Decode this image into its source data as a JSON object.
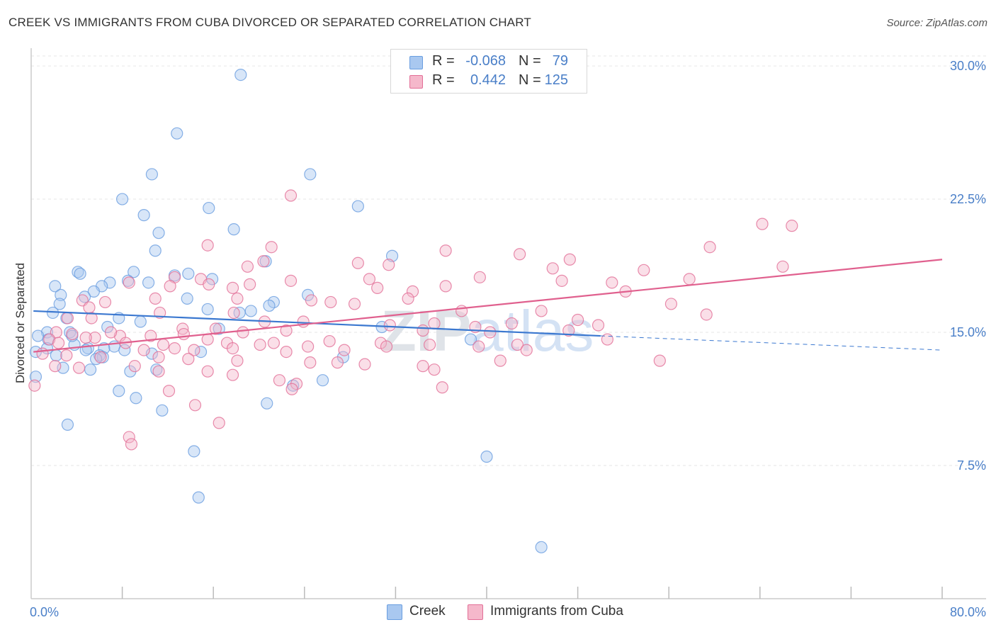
{
  "title": "CREEK VS IMMIGRANTS FROM CUBA DIVORCED OR SEPARATED CORRELATION CHART",
  "source": "Source: ZipAtlas.com",
  "watermark": "ZIPatlas",
  "legend": {
    "rows": [
      {
        "r_label": "R =",
        "r_value": "-0.068",
        "n_label": "N =",
        "n_value": "79",
        "color": "#a9c8f0"
      },
      {
        "r_label": "R =",
        "r_value": "0.442",
        "n_label": "N =",
        "n_value": "125",
        "color": "#f5b8cb"
      }
    ]
  },
  "bottom_legend": [
    {
      "label": "Creek",
      "color": "#a9c8f0"
    },
    {
      "label": "Immigrants from Cuba",
      "color": "#f5b8cb"
    }
  ],
  "chart_data": {
    "type": "scatter",
    "title": "CREEK VS IMMIGRANTS FROM CUBA DIVORCED OR SEPARATED CORRELATION CHART",
    "xlabel": "",
    "ylabel": "Divorced or Separated",
    "xlim": [
      0,
      80
    ],
    "ylim": [
      0,
      31
    ],
    "x_tick_labels": [
      "0.0%",
      "80.0%"
    ],
    "y_ticks": [
      7.5,
      15.0,
      22.5,
      30.0
    ],
    "y_tick_labels": [
      "7.5%",
      "15.0%",
      "22.5%",
      "30.0%"
    ],
    "grid": true,
    "legend_position": "top-center",
    "series": [
      {
        "name": "Creek",
        "color": "#6a9ee0",
        "fill": "#a9c8f0",
        "trend": {
          "x0": 0.2,
          "y0": 16.2,
          "x1": 50,
          "y1": 14.8,
          "dash_x1": 80,
          "dash_y1": 14.0
        },
        "points": [
          [
            18.4,
            29.5
          ],
          [
            12.8,
            26.2
          ],
          [
            10.6,
            23.9
          ],
          [
            24.5,
            23.9
          ],
          [
            8.0,
            22.5
          ],
          [
            15.6,
            22.0
          ],
          [
            28.7,
            22.1
          ],
          [
            9.9,
            21.6
          ],
          [
            11.2,
            20.6
          ],
          [
            17.8,
            20.8
          ],
          [
            10.9,
            19.6
          ],
          [
            31.7,
            19.3
          ],
          [
            20.6,
            19.0
          ],
          [
            4.1,
            18.4
          ],
          [
            4.3,
            18.3
          ],
          [
            9.0,
            18.4
          ],
          [
            12.6,
            18.2
          ],
          [
            15.9,
            18.0
          ],
          [
            6.9,
            17.8
          ],
          [
            6.2,
            17.6
          ],
          [
            8.5,
            17.9
          ],
          [
            10.3,
            17.8
          ],
          [
            2.1,
            17.6
          ],
          [
            5.5,
            17.3
          ],
          [
            2.6,
            17.1
          ],
          [
            24.3,
            17.1
          ],
          [
            4.7,
            17.0
          ],
          [
            13.7,
            16.9
          ],
          [
            21.3,
            16.7
          ],
          [
            2.5,
            16.6
          ],
          [
            20.9,
            16.5
          ],
          [
            15.5,
            16.3
          ],
          [
            1.9,
            16.1
          ],
          [
            18.3,
            16.1
          ],
          [
            19.3,
            16.2
          ],
          [
            3.1,
            15.8
          ],
          [
            7.7,
            15.8
          ],
          [
            9.6,
            15.6
          ],
          [
            6.7,
            15.3
          ],
          [
            16.5,
            15.2
          ],
          [
            30.8,
            15.3
          ],
          [
            1.4,
            15.0
          ],
          [
            3.4,
            15.0
          ],
          [
            0.6,
            14.8
          ],
          [
            1.5,
            14.6
          ],
          [
            38.6,
            14.6
          ],
          [
            3.8,
            14.3
          ],
          [
            5.0,
            14.1
          ],
          [
            7.3,
            14.2
          ],
          [
            4.8,
            14.0
          ],
          [
            6.4,
            14.1
          ],
          [
            0.4,
            13.9
          ],
          [
            1.4,
            14.1
          ],
          [
            8.2,
            14.0
          ],
          [
            6.0,
            13.7
          ],
          [
            10.6,
            13.8
          ],
          [
            14.9,
            13.9
          ],
          [
            2.2,
            13.7
          ],
          [
            27.4,
            13.6
          ],
          [
            6.3,
            13.6
          ],
          [
            5.7,
            13.5
          ],
          [
            2.8,
            13.0
          ],
          [
            5.2,
            12.9
          ],
          [
            8.7,
            12.8
          ],
          [
            11.0,
            12.9
          ],
          [
            0.4,
            12.5
          ],
          [
            25.6,
            12.3
          ],
          [
            23.0,
            12.0
          ],
          [
            7.7,
            11.7
          ],
          [
            9.2,
            11.3
          ],
          [
            11.5,
            10.6
          ],
          [
            20.7,
            11.0
          ],
          [
            3.2,
            9.8
          ],
          [
            14.3,
            8.3
          ],
          [
            40.0,
            8.0
          ],
          [
            14.7,
            5.7
          ],
          [
            44.8,
            2.9
          ],
          [
            3.6,
            14.8
          ],
          [
            13.8,
            18.3
          ]
        ]
      },
      {
        "name": "Immigrants from Cuba",
        "color": "#e26f97",
        "fill": "#f5b8cb",
        "trend": {
          "x0": 0.2,
          "y0": 13.9,
          "x1": 80,
          "y1": 19.1
        },
        "points": [
          [
            22.8,
            22.7
          ],
          [
            64.2,
            21.1
          ],
          [
            66.8,
            21.0
          ],
          [
            15.5,
            19.9
          ],
          [
            21.1,
            19.8
          ],
          [
            59.6,
            19.8
          ],
          [
            36.4,
            19.6
          ],
          [
            42.9,
            19.4
          ],
          [
            20.4,
            19.0
          ],
          [
            28.7,
            18.9
          ],
          [
            19.0,
            18.7
          ],
          [
            31.4,
            18.8
          ],
          [
            47.3,
            19.1
          ],
          [
            45.8,
            18.6
          ],
          [
            53.8,
            18.5
          ],
          [
            66.0,
            18.7
          ],
          [
            12.6,
            18.1
          ],
          [
            14.9,
            18.0
          ],
          [
            29.7,
            18.0
          ],
          [
            39.4,
            18.1
          ],
          [
            57.8,
            18.0
          ],
          [
            8.6,
            17.8
          ],
          [
            15.6,
            17.7
          ],
          [
            12.2,
            17.6
          ],
          [
            17.7,
            17.5
          ],
          [
            19.2,
            17.7
          ],
          [
            22.8,
            17.9
          ],
          [
            30.4,
            17.5
          ],
          [
            33.5,
            17.3
          ],
          [
            36.4,
            17.6
          ],
          [
            46.6,
            17.9
          ],
          [
            51.0,
            17.8
          ],
          [
            52.2,
            17.3
          ],
          [
            10.9,
            16.9
          ],
          [
            18.1,
            16.9
          ],
          [
            24.6,
            16.8
          ],
          [
            26.3,
            16.7
          ],
          [
            28.4,
            16.6
          ],
          [
            4.5,
            16.8
          ],
          [
            6.5,
            16.7
          ],
          [
            5.1,
            16.4
          ],
          [
            11.3,
            16.1
          ],
          [
            17.8,
            16.1
          ],
          [
            37.8,
            16.2
          ],
          [
            44.8,
            16.2
          ],
          [
            56.2,
            16.6
          ],
          [
            59.3,
            16.0
          ],
          [
            3.2,
            15.8
          ],
          [
            5.3,
            15.8
          ],
          [
            20.5,
            15.6
          ],
          [
            23.9,
            15.6
          ],
          [
            31.5,
            15.4
          ],
          [
            35.4,
            15.5
          ],
          [
            42.2,
            15.5
          ],
          [
            48.0,
            15.7
          ],
          [
            47.2,
            15.1
          ],
          [
            49.8,
            15.4
          ],
          [
            39.0,
            15.3
          ],
          [
            40.3,
            15.0
          ],
          [
            34.4,
            15.1
          ],
          [
            16.2,
            15.2
          ],
          [
            18.6,
            15.0
          ],
          [
            22.4,
            15.1
          ],
          [
            13.3,
            15.2
          ],
          [
            13.4,
            14.9
          ],
          [
            10.5,
            14.8
          ],
          [
            7.8,
            14.8
          ],
          [
            5.6,
            14.7
          ],
          [
            3.6,
            14.9
          ],
          [
            2.2,
            15.0
          ],
          [
            1.6,
            14.6
          ],
          [
            2.4,
            14.4
          ],
          [
            4.8,
            14.7
          ],
          [
            8.3,
            14.4
          ],
          [
            11.6,
            14.3
          ],
          [
            15.5,
            14.6
          ],
          [
            17.2,
            14.4
          ],
          [
            20.1,
            14.3
          ],
          [
            21.3,
            14.4
          ],
          [
            24.3,
            14.2
          ],
          [
            30.7,
            14.4
          ],
          [
            35.0,
            14.3
          ],
          [
            39.3,
            14.2
          ],
          [
            42.7,
            14.3
          ],
          [
            50.6,
            14.6
          ],
          [
            9.9,
            14.0
          ],
          [
            12.6,
            14.1
          ],
          [
            14.3,
            14.0
          ],
          [
            17.7,
            14.1
          ],
          [
            22.4,
            13.9
          ],
          [
            27.5,
            14.0
          ],
          [
            31.2,
            14.2
          ],
          [
            1.0,
            13.8
          ],
          [
            3.1,
            13.7
          ],
          [
            6.1,
            13.6
          ],
          [
            11.2,
            13.6
          ],
          [
            13.8,
            13.5
          ],
          [
            18.1,
            13.4
          ],
          [
            24.5,
            13.3
          ],
          [
            26.9,
            13.3
          ],
          [
            29.3,
            13.2
          ],
          [
            34.4,
            13.1
          ],
          [
            41.2,
            13.4
          ],
          [
            55.2,
            13.4
          ],
          [
            2.1,
            13.1
          ],
          [
            4.2,
            13.0
          ],
          [
            9.1,
            13.1
          ],
          [
            11.2,
            12.8
          ],
          [
            15.5,
            12.8
          ],
          [
            17.7,
            12.6
          ],
          [
            21.8,
            12.3
          ],
          [
            23.3,
            12.1
          ],
          [
            35.4,
            12.9
          ],
          [
            36.1,
            11.9
          ],
          [
            22.9,
            11.8
          ],
          [
            12.1,
            11.7
          ],
          [
            14.4,
            10.9
          ],
          [
            16.5,
            9.9
          ],
          [
            8.6,
            9.1
          ],
          [
            8.8,
            8.7
          ],
          [
            0.3,
            12.0
          ],
          [
            26.2,
            14.5
          ],
          [
            33.1,
            16.9
          ],
          [
            43.5,
            14.0
          ],
          [
            7.0,
            15.0
          ]
        ]
      }
    ]
  }
}
